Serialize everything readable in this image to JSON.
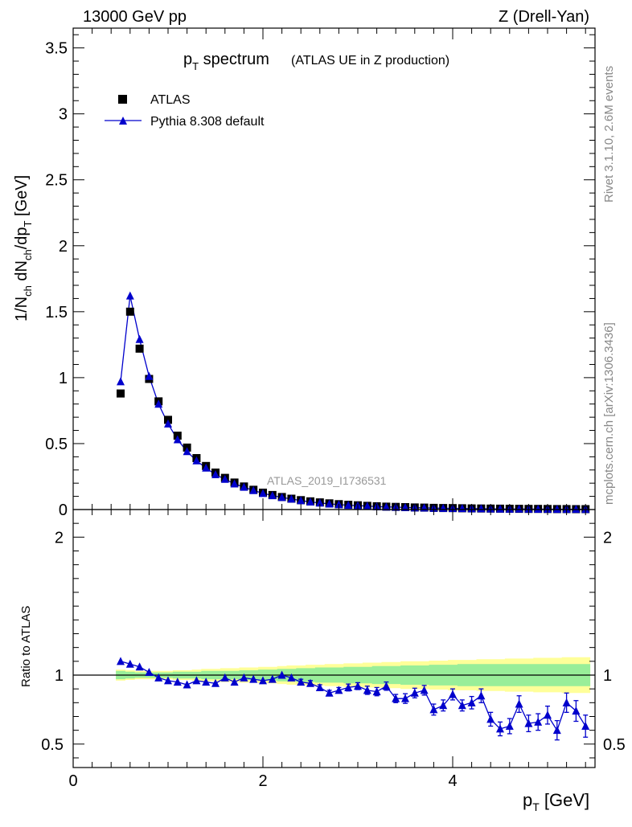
{
  "header": {
    "left": "13000 GeV pp",
    "right": "Z (Drell-Yan)"
  },
  "side_notes": {
    "rivet": "Rivet 3.1.10,  2.6M events",
    "mcplots": "mcplots.cern.ch [arXiv:1306.3436]"
  },
  "colors": {
    "mc": "#0000cc",
    "data": "#000000",
    "band_inner": "#99ee99",
    "band_outer": "#ffff99"
  },
  "chart_data": [
    {
      "type": "scatter",
      "panel": "main",
      "title_main": "p",
      "title_sub": "T",
      "title_rest": " spectrum",
      "title_note": "(ATLAS UE in Z production)",
      "analysis_tag": "ATLAS_2019_I1736531",
      "ylabel": "1/N_ch dN_ch/dp_T [GeV]",
      "xlim": [
        0,
        5.5
      ],
      "ylim": [
        0,
        3.65
      ],
      "yticks": [
        "0",
        "0.5",
        "1",
        "1.5",
        "2",
        "2.5",
        "3",
        "3.5"
      ],
      "legend": {
        "position": "top-left",
        "entries": [
          "ATLAS",
          "Pythia 8.308 default"
        ]
      },
      "x": [
        0.5,
        0.6,
        0.7,
        0.8,
        0.9,
        1.0,
        1.1,
        1.2,
        1.3,
        1.4,
        1.5,
        1.6,
        1.7,
        1.8,
        1.9,
        2.0,
        2.1,
        2.2,
        2.3,
        2.4,
        2.5,
        2.6,
        2.7,
        2.8,
        2.9,
        3.0,
        3.1,
        3.2,
        3.3,
        3.4,
        3.5,
        3.6,
        3.7,
        3.8,
        3.9,
        4.0,
        4.1,
        4.2,
        4.3,
        4.4,
        4.5,
        4.6,
        4.7,
        4.8,
        4.9,
        5.0,
        5.1,
        5.2,
        5.3,
        5.4
      ],
      "series": [
        {
          "name": "ATLAS",
          "values": [
            0.88,
            1.5,
            1.22,
            0.99,
            0.82,
            0.68,
            0.56,
            0.47,
            0.39,
            0.33,
            0.28,
            0.24,
            0.205,
            0.175,
            0.15,
            0.128,
            0.11,
            0.095,
            0.082,
            0.071,
            0.062,
            0.054,
            0.047,
            0.041,
            0.036,
            0.032,
            0.028,
            0.025,
            0.022,
            0.02,
            0.018,
            0.016,
            0.0145,
            0.013,
            0.0118,
            0.0107,
            0.0097,
            0.0088,
            0.008,
            0.0073,
            0.0066,
            0.006,
            0.0055,
            0.005,
            0.0046,
            0.0042,
            0.0038,
            0.0035,
            0.0032,
            0.003
          ]
        },
        {
          "name": "Pythia 8.308 default",
          "values": [
            0.97,
            1.62,
            1.29,
            1.01,
            0.8,
            0.65,
            0.53,
            0.44,
            0.37,
            0.315,
            0.265,
            0.23,
            0.195,
            0.17,
            0.145,
            0.123,
            0.106,
            0.092,
            0.08,
            0.068,
            0.058,
            0.05,
            0.043,
            0.037,
            0.033,
            0.029,
            0.026,
            0.022,
            0.02,
            0.018,
            0.016,
            0.014,
            0.013,
            0.011,
            0.0098,
            0.0093,
            0.0082,
            0.007,
            0.0068,
            0.005,
            0.0045,
            0.0038,
            0.0042,
            0.0035,
            0.003,
            0.0029,
            0.0024,
            0.0026,
            0.0023,
            0.0019
          ]
        }
      ]
    },
    {
      "type": "line",
      "panel": "ratio",
      "ylabel": "Ratio to ATLAS",
      "xlabel_main": "p",
      "xlabel_sub": "T",
      "xlabel_rest": " [GeV]",
      "xlim": [
        0,
        5.5
      ],
      "ylim": [
        0.33,
        2.2
      ],
      "yticks": [
        "0.5",
        "1",
        "2"
      ],
      "xticks": [
        "0",
        "2",
        "4"
      ],
      "x": [
        0.5,
        0.6,
        0.7,
        0.8,
        0.9,
        1.0,
        1.1,
        1.2,
        1.3,
        1.4,
        1.5,
        1.6,
        1.7,
        1.8,
        1.9,
        2.0,
        2.1,
        2.2,
        2.3,
        2.4,
        2.5,
        2.6,
        2.7,
        2.8,
        2.9,
        3.0,
        3.1,
        3.2,
        3.3,
        3.4,
        3.5,
        3.6,
        3.7,
        3.8,
        3.9,
        4.0,
        4.1,
        4.2,
        4.3,
        4.4,
        4.5,
        4.6,
        4.7,
        4.8,
        4.9,
        5.0,
        5.1,
        5.2,
        5.3,
        5.4
      ],
      "series": [
        {
          "name": "Pythia 8.308 default",
          "values": [
            1.1,
            1.08,
            1.06,
            1.02,
            0.98,
            0.96,
            0.95,
            0.93,
            0.96,
            0.95,
            0.94,
            0.98,
            0.95,
            0.98,
            0.97,
            0.96,
            0.97,
            1.0,
            0.98,
            0.95,
            0.94,
            0.91,
            0.87,
            0.89,
            0.91,
            0.92,
            0.89,
            0.88,
            0.92,
            0.83,
            0.83,
            0.87,
            0.89,
            0.75,
            0.78,
            0.86,
            0.78,
            0.8,
            0.85,
            0.68,
            0.61,
            0.63,
            0.79,
            0.65,
            0.66,
            0.71,
            0.6,
            0.8,
            0.74,
            0.63
          ],
          "errors": [
            0.01,
            0.01,
            0.01,
            0.01,
            0.01,
            0.01,
            0.01,
            0.01,
            0.01,
            0.01,
            0.01,
            0.01,
            0.01,
            0.01,
            0.01,
            0.01,
            0.015,
            0.015,
            0.015,
            0.02,
            0.02,
            0.02,
            0.02,
            0.02,
            0.025,
            0.025,
            0.03,
            0.03,
            0.03,
            0.03,
            0.035,
            0.035,
            0.035,
            0.04,
            0.04,
            0.04,
            0.04,
            0.045,
            0.05,
            0.05,
            0.05,
            0.055,
            0.06,
            0.06,
            0.06,
            0.065,
            0.07,
            0.07,
            0.075,
            0.08
          ]
        },
        {
          "name": "band_inner",
          "lower": [
            0.97,
            0.975,
            0.98,
            0.98,
            0.98,
            0.98,
            0.975,
            0.975,
            0.975,
            0.97,
            0.97,
            0.97,
            0.97,
            0.965,
            0.965,
            0.96,
            0.96,
            0.955,
            0.955,
            0.95,
            0.95,
            0.945,
            0.945,
            0.945,
            0.94,
            0.94,
            0.94,
            0.935,
            0.935,
            0.935,
            0.93,
            0.93,
            0.93,
            0.925,
            0.925,
            0.925,
            0.92,
            0.92,
            0.92,
            0.92,
            0.92,
            0.92,
            0.92,
            0.92,
            0.92,
            0.92,
            0.92,
            0.92,
            0.92,
            0.92
          ],
          "upper": [
            1.03,
            1.025,
            1.02,
            1.02,
            1.02,
            1.02,
            1.025,
            1.025,
            1.025,
            1.03,
            1.03,
            1.03,
            1.03,
            1.035,
            1.035,
            1.04,
            1.04,
            1.045,
            1.045,
            1.05,
            1.05,
            1.055,
            1.055,
            1.055,
            1.06,
            1.06,
            1.06,
            1.065,
            1.065,
            1.065,
            1.07,
            1.07,
            1.07,
            1.075,
            1.075,
            1.075,
            1.08,
            1.08,
            1.08,
            1.08,
            1.08,
            1.08,
            1.08,
            1.08,
            1.08,
            1.08,
            1.08,
            1.08,
            1.08,
            1.08
          ]
        },
        {
          "name": "band_outer",
          "lower": [
            0.96,
            0.965,
            0.97,
            0.97,
            0.97,
            0.97,
            0.965,
            0.965,
            0.96,
            0.955,
            0.955,
            0.95,
            0.95,
            0.945,
            0.945,
            0.94,
            0.94,
            0.935,
            0.93,
            0.93,
            0.925,
            0.925,
            0.92,
            0.92,
            0.915,
            0.915,
            0.91,
            0.91,
            0.905,
            0.905,
            0.9,
            0.9,
            0.9,
            0.895,
            0.895,
            0.89,
            0.89,
            0.89,
            0.885,
            0.885,
            0.885,
            0.88,
            0.88,
            0.88,
            0.875,
            0.875,
            0.875,
            0.87,
            0.87,
            0.87
          ],
          "upper": [
            1.04,
            1.035,
            1.03,
            1.03,
            1.03,
            1.03,
            1.035,
            1.035,
            1.04,
            1.045,
            1.045,
            1.05,
            1.05,
            1.055,
            1.055,
            1.06,
            1.06,
            1.065,
            1.07,
            1.07,
            1.075,
            1.075,
            1.08,
            1.08,
            1.085,
            1.085,
            1.09,
            1.09,
            1.095,
            1.095,
            1.1,
            1.1,
            1.1,
            1.105,
            1.105,
            1.11,
            1.11,
            1.11,
            1.115,
            1.115,
            1.115,
            1.12,
            1.12,
            1.12,
            1.125,
            1.125,
            1.125,
            1.13,
            1.13,
            1.13
          ]
        }
      ]
    }
  ]
}
